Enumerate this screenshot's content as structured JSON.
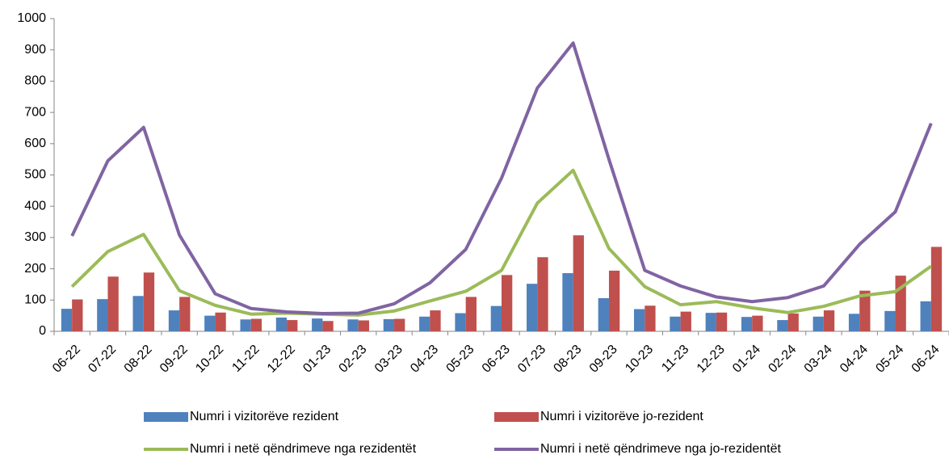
{
  "chart_data": {
    "type": "bar-line",
    "categories": [
      "06-22",
      "07-22",
      "08-22",
      "09-22",
      "10-22",
      "11-22",
      "12-22",
      "01-23",
      "02-23",
      "03-23",
      "04-23",
      "05-23",
      "06-23",
      "07-23",
      "08-23",
      "09-23",
      "10-23",
      "11-23",
      "12-23",
      "01-24",
      "02-24",
      "03-24",
      "04-24",
      "05-24",
      "06-24"
    ],
    "series": [
      {
        "name": "Numri i vizitorëve rezident",
        "type": "bar",
        "color": "#4f81bd",
        "values": [
          72,
          103,
          113,
          67,
          50,
          38,
          44,
          41,
          38,
          39,
          47,
          58,
          81,
          152,
          186,
          106,
          71,
          47,
          59,
          46,
          36,
          47,
          56,
          65,
          96
        ]
      },
      {
        "name": "Numri i vizitorëve jo-rezident",
        "type": "bar",
        "color": "#c0504d",
        "values": [
          102,
          175,
          188,
          110,
          60,
          40,
          36,
          33,
          35,
          40,
          67,
          110,
          180,
          237,
          307,
          194,
          82,
          63,
          60,
          50,
          57,
          67,
          130,
          178,
          270
        ]
      },
      {
        "name": "Numri i netë qëndrimeve nga rezidentët",
        "type": "line",
        "color": "#9bbb59",
        "values": [
          143,
          255,
          310,
          130,
          83,
          55,
          58,
          55,
          52,
          65,
          97,
          128,
          195,
          410,
          515,
          265,
          143,
          85,
          95,
          75,
          60,
          80,
          113,
          127,
          208
        ]
      },
      {
        "name": "Numri i netë qëndrimeve nga jo-rezidentët",
        "type": "line",
        "color": "#8064a2",
        "values": [
          305,
          545,
          652,
          308,
          120,
          73,
          62,
          57,
          58,
          88,
          155,
          262,
          490,
          778,
          922,
          550,
          195,
          145,
          110,
          95,
          108,
          145,
          278,
          382,
          665
        ]
      }
    ],
    "ylim": [
      0,
      1000
    ],
    "yticks": [
      0,
      100,
      200,
      300,
      400,
      500,
      600,
      700,
      800,
      900,
      1000
    ],
    "grid": false
  }
}
